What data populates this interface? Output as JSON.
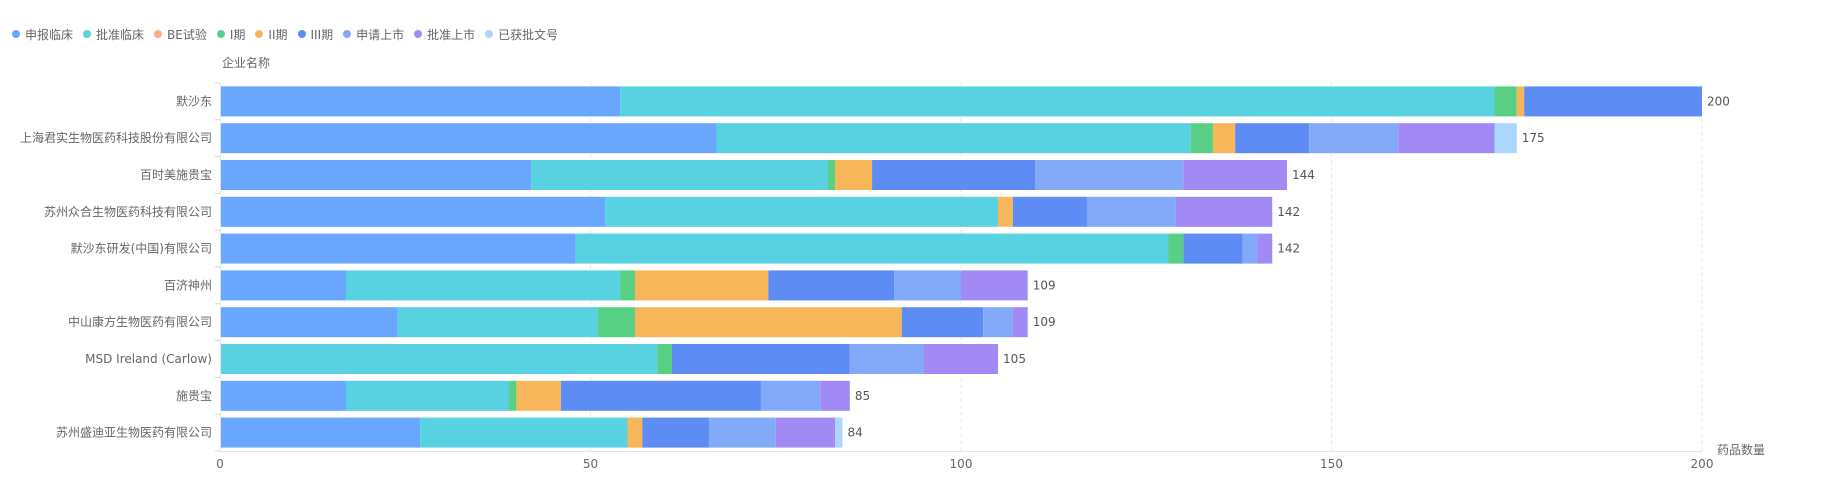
{
  "chart_data": {
    "type": "bar",
    "orientation": "horizontal",
    "stacked": true,
    "ylabel": "企业名称",
    "xlabel": "药品数量",
    "xlim": [
      0,
      200
    ],
    "xticks": [
      "0",
      "50",
      "100",
      "150",
      "200"
    ],
    "grid": true,
    "legend_position": "top-left",
    "categories": [
      "默沙东",
      "上海君实生物医药科技股份有限公司",
      "百时美施贵宝",
      "苏州众合生物医药科技有限公司",
      "默沙东研发(中国)有限公司",
      "百济神州",
      "中山康方生物医药有限公司",
      "MSD Ireland (Carlow)",
      "施贵宝",
      "苏州盛迪亚生物医药有限公司"
    ],
    "totals": [
      200,
      175,
      144,
      142,
      142,
      109,
      109,
      105,
      85,
      84
    ],
    "series": [
      {
        "name": "申报临床",
        "color": "#69a7fe",
        "values": [
          54,
          67,
          42,
          52,
          48,
          17,
          24,
          0,
          17,
          27
        ]
      },
      {
        "name": "批准临床",
        "color": "#58d1e0",
        "values": [
          118,
          64,
          40,
          53,
          80,
          37,
          27,
          59,
          22,
          28
        ]
      },
      {
        "name": "BE试验",
        "color": "#ffa98b",
        "values": [
          0,
          0,
          0,
          0,
          0,
          0,
          0,
          0,
          0,
          0
        ]
      },
      {
        "name": "I期",
        "color": "#58d084",
        "values": [
          3,
          3,
          1,
          0,
          2,
          2,
          5,
          2,
          1,
          0
        ]
      },
      {
        "name": "II期",
        "color": "#f8b65a",
        "values": [
          1,
          3,
          5,
          2,
          0,
          18,
          36,
          0,
          6,
          2
        ]
      },
      {
        "name": "III期",
        "color": "#5e8cf5",
        "values": [
          24,
          10,
          22,
          10,
          8,
          17,
          11,
          24,
          27,
          9
        ]
      },
      {
        "name": "申请上市",
        "color": "#82aaf8",
        "values": [
          0,
          12,
          20,
          12,
          2,
          9,
          4,
          10,
          8,
          9
        ]
      },
      {
        "name": "批准上市",
        "color": "#a28af5",
        "values": [
          0,
          13,
          14,
          13,
          2,
          9,
          2,
          10,
          4,
          8
        ]
      },
      {
        "name": "已获批文号",
        "color": "#aad6ff",
        "values": [
          0,
          3,
          0,
          0,
          0,
          0,
          0,
          0,
          0,
          1
        ]
      }
    ]
  }
}
